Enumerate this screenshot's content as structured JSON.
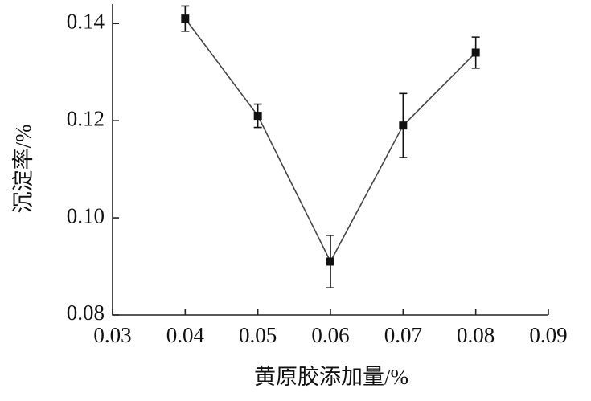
{
  "chart_data": {
    "type": "line",
    "x_label": "黄原胶添加量/%",
    "y_label": "沉淀率/%",
    "x": [
      0.04,
      0.05,
      0.06,
      0.07,
      0.08
    ],
    "series": [
      {
        "color": "#111111",
        "values": [
          0.141,
          0.121,
          0.091,
          0.119,
          0.134
        ],
        "errors": [
          0.0026,
          0.0024,
          0.0054,
          0.0066,
          0.0032
        ]
      }
    ],
    "xlim": [
      0.03,
      0.09
    ],
    "xticks": [
      0.03,
      0.04,
      0.05,
      0.06,
      0.07,
      0.08,
      0.09
    ],
    "ylim": [
      0.08,
      0.144
    ],
    "yticks": [
      0.08,
      {
        "value": 0.1,
        "label": "0.10"
      },
      0.12,
      0.14
    ],
    "grid": false
  }
}
